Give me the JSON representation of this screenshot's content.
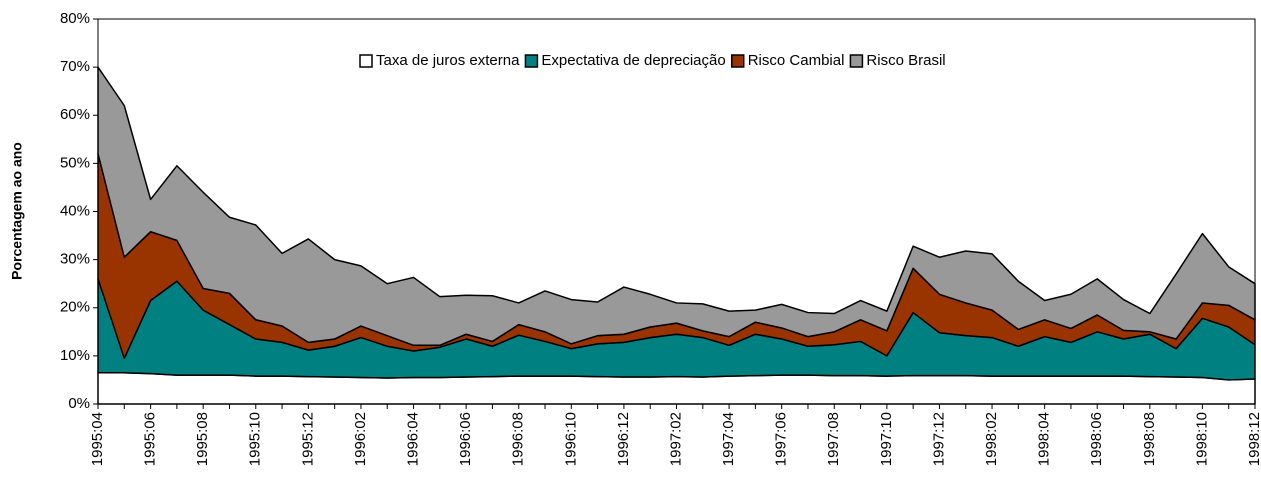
{
  "chart_data": {
    "type": "stacked-area",
    "y_label": "Porcentagem ao ano",
    "categories": [
      "1995:04",
      null,
      "1995:06",
      null,
      "1995:08",
      null,
      "1995:10",
      null,
      "1995:12",
      null,
      "1996:02",
      null,
      "1996:04",
      null,
      "1996:06",
      null,
      "1996:08",
      null,
      "1996:10",
      null,
      "1996:12",
      null,
      "1997:02",
      null,
      "1997:04",
      null,
      "1997:06",
      null,
      "1997:08",
      null,
      "1997:10",
      null,
      "1997:12",
      null,
      "1998:02",
      null,
      "1998:04",
      null,
      "1998:06",
      null,
      "1998:08",
      null,
      "1998:10",
      null,
      "1998:12"
    ],
    "series": [
      {
        "name": "Taxa de juros externa",
        "color": "#ffffff",
        "values": [
          6.5,
          6.5,
          6.3,
          6.0,
          6.0,
          6.0,
          5.8,
          5.8,
          5.7,
          5.6,
          5.5,
          5.4,
          5.5,
          5.5,
          5.6,
          5.7,
          5.8,
          5.8,
          5.8,
          5.7,
          5.6,
          5.6,
          5.7,
          5.6,
          5.8,
          5.9,
          6.0,
          6.0,
          5.9,
          5.9,
          5.8,
          5.9,
          5.9,
          5.9,
          5.8,
          5.8,
          5.8,
          5.8,
          5.8,
          5.8,
          5.7,
          5.6,
          5.5,
          5.0,
          5.2
        ]
      },
      {
        "name": "Expectativa de depreciação",
        "color": "#008080",
        "values": [
          19.5,
          3.0,
          15.2,
          19.5,
          13.5,
          10.5,
          7.7,
          7.0,
          5.5,
          6.4,
          8.3,
          6.6,
          5.5,
          6.3,
          7.9,
          6.3,
          8.5,
          7.2,
          5.7,
          6.8,
          7.2,
          8.2,
          8.8,
          8.2,
          6.4,
          8.6,
          7.5,
          6.0,
          6.4,
          7.1,
          4.2,
          13.1,
          8.9,
          8.3,
          8.0,
          6.2,
          8.2,
          7.0,
          9.2,
          7.7,
          8.8,
          5.9,
          12.3,
          11.0,
          7.1
        ]
      },
      {
        "name": "Risco Cambial",
        "color": "#993300",
        "values": [
          26,
          21,
          14.3,
          8.5,
          4.5,
          6.5,
          4.0,
          3.4,
          1.6,
          1.5,
          2.4,
          2.2,
          1.2,
          0.4,
          1.0,
          1.0,
          2.2,
          2.0,
          1.0,
          1.7,
          1.7,
          2.2,
          2.3,
          1.4,
          1.8,
          2.5,
          2.3,
          2.0,
          2.7,
          4.5,
          5.2,
          9.2,
          8.0,
          6.8,
          5.7,
          3.5,
          3.5,
          2.9,
          3.5,
          1.8,
          0.5,
          2.0,
          3.2,
          4.5,
          5.2
        ]
      },
      {
        "name": "Risco Brasil",
        "color": "#999999",
        "values": [
          18,
          31.5,
          6.7,
          15.5,
          20,
          15.8,
          19.7,
          15.1,
          21.5,
          16.5,
          12.5,
          10.8,
          14.1,
          10.1,
          8.1,
          9.5,
          4.5,
          8.5,
          9.2,
          7.0,
          9.8,
          6.8,
          4.2,
          5.6,
          5.3,
          2.5,
          4.9,
          5.0,
          3.8,
          4.0,
          4.1,
          4.6,
          7.7,
          10.8,
          11.7,
          10.0,
          4.0,
          7.1,
          7.5,
          6.4,
          3.8,
          13.5,
          14.4,
          8.0,
          7.5
        ]
      }
    ],
    "ylim": [
      0,
      80
    ],
    "yticks": [
      {
        "value": 0,
        "label": "0%"
      },
      {
        "value": 10,
        "label": "10%"
      },
      {
        "value": 20,
        "label": "20%"
      },
      {
        "value": 30,
        "label": "30%"
      },
      {
        "value": 40,
        "label": "40%"
      },
      {
        "value": 50,
        "label": "50%"
      },
      {
        "value": 60,
        "label": "60%"
      },
      {
        "value": 70,
        "label": "70%"
      },
      {
        "value": 80,
        "label": "80%"
      }
    ],
    "grid": false,
    "legend": "top"
  }
}
